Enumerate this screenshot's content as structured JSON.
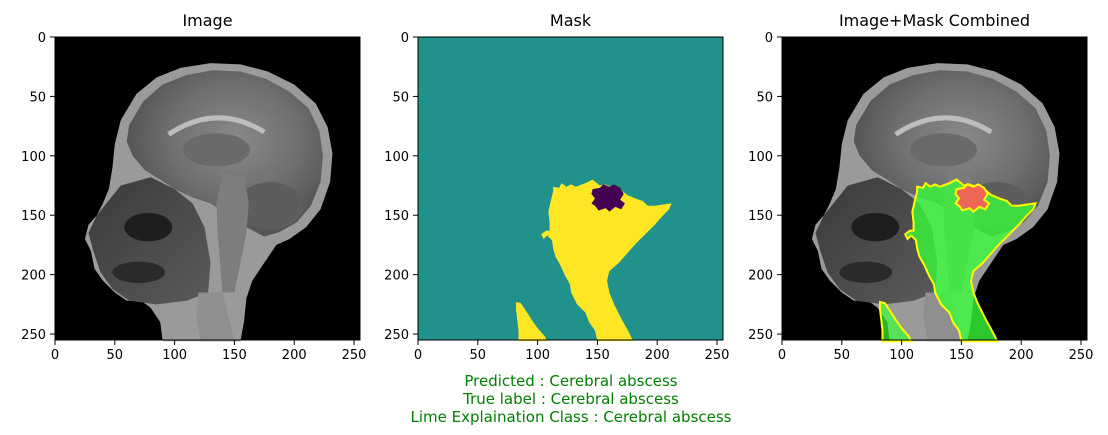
{
  "chart_data": [
    {
      "type": "image",
      "title": "Image",
      "xlim": [
        0,
        255
      ],
      "ylim": [
        255,
        0
      ],
      "x_ticks": [
        0,
        50,
        100,
        150,
        200,
        250
      ],
      "y_ticks": [
        0,
        50,
        100,
        150,
        200,
        250
      ],
      "colormap": "gray",
      "content": "sagittal brain MRI"
    },
    {
      "type": "image",
      "title": "Mask",
      "xlim": [
        0,
        255
      ],
      "ylim": [
        255,
        0
      ],
      "x_ticks": [
        0,
        50,
        100,
        150,
        200,
        250
      ],
      "y_ticks": [
        0,
        50,
        100,
        150,
        200,
        250
      ],
      "colormap": "viridis",
      "colors": {
        "background": "#21918c",
        "region": "#fde725",
        "core": "#440154"
      }
    },
    {
      "type": "image",
      "title": "Image+Mask Combined",
      "xlim": [
        0,
        255
      ],
      "ylim": [
        255,
        0
      ],
      "x_ticks": [
        0,
        50,
        100,
        150,
        200,
        250
      ],
      "y_ticks": [
        0,
        50,
        100,
        150,
        200,
        250
      ],
      "colors": {
        "region": "#39ff39",
        "core": "#ff5a5a",
        "boundary": "#ffff00"
      }
    }
  ],
  "captions": {
    "predicted": "Predicted : Cerebral abscess",
    "true_label": "True label : Cerebral abscess",
    "lime_class": "Lime Explaination Class : Cerebral abscess"
  },
  "caption_color": "#008000"
}
